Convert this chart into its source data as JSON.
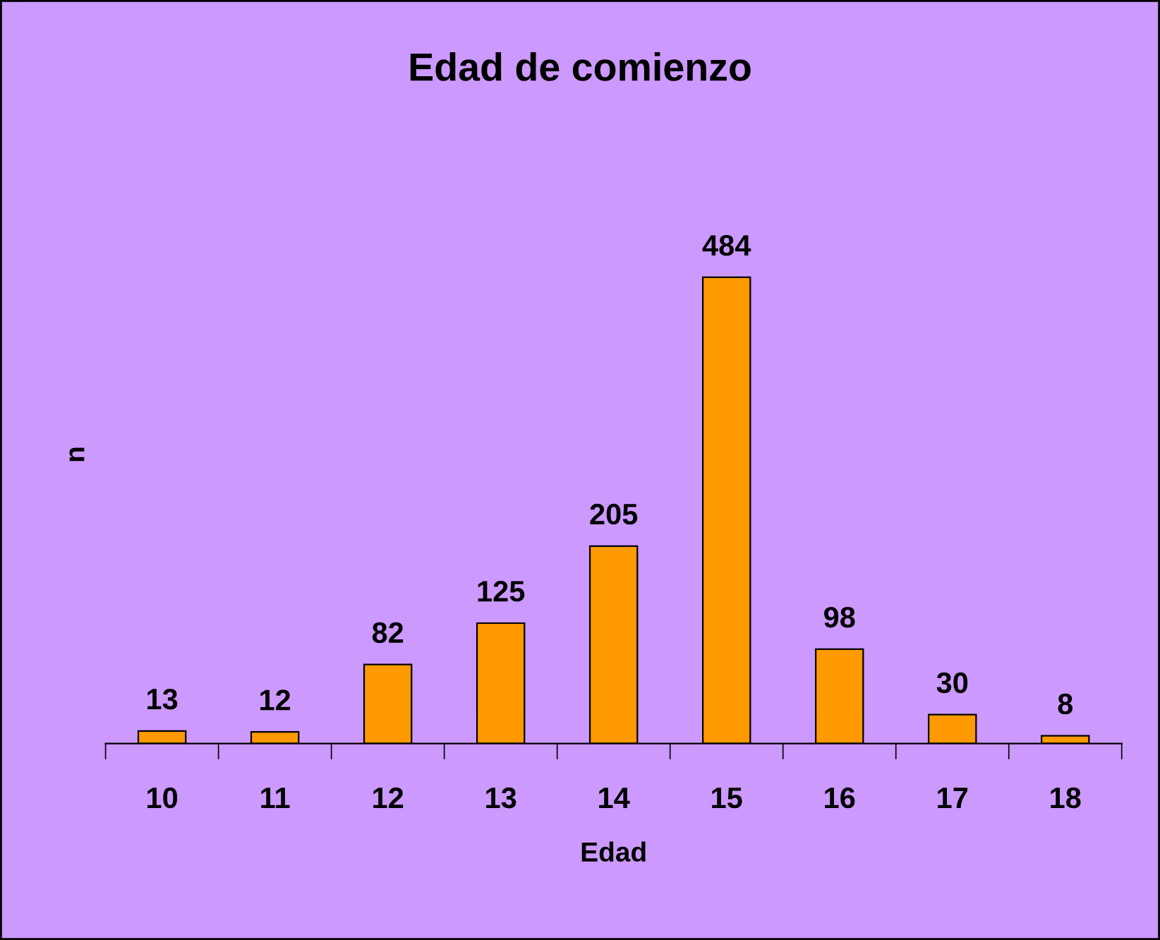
{
  "chart_data": {
    "type": "bar",
    "title": "Edad de comienzo",
    "xlabel": "Edad",
    "ylabel": "n",
    "categories": [
      "10",
      "11",
      "12",
      "13",
      "14",
      "15",
      "16",
      "17",
      "18"
    ],
    "values": [
      13,
      12,
      82,
      125,
      205,
      484,
      98,
      30,
      8
    ],
    "color": "#ff9900",
    "data_labels": true,
    "tick_labels": "x",
    "grid": false,
    "legend": false
  }
}
